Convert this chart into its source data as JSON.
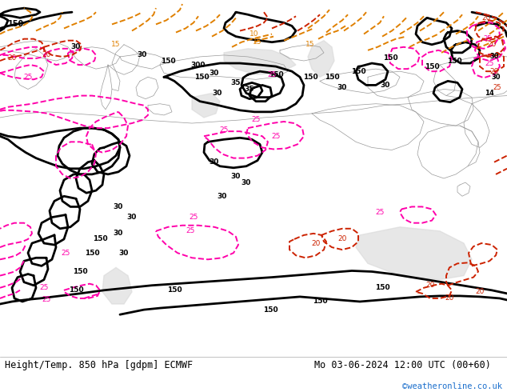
{
  "title_left": "Height/Temp. 850 hPa [gdpm] ECMWF",
  "title_right": "Mo 03-06-2024 12:00 UTC (00+60)",
  "credit": "©weatheronline.co.uk",
  "fig_width": 6.34,
  "fig_height": 4.9,
  "dpi": 100,
  "bottom_bar_color": "#ffffff",
  "map_bg": "#c8f09c",
  "gray_land": "#d8d8d8",
  "title_fontsize": 8.5,
  "credit_fontsize": 7.5,
  "credit_color": "#1a6ecc",
  "black": "#000000",
  "orange": "#e08000",
  "pink": "#ff00aa",
  "red": "#cc2200",
  "gray": "#999999",
  "lw_black": 2.0,
  "lw_colored": 1.4
}
